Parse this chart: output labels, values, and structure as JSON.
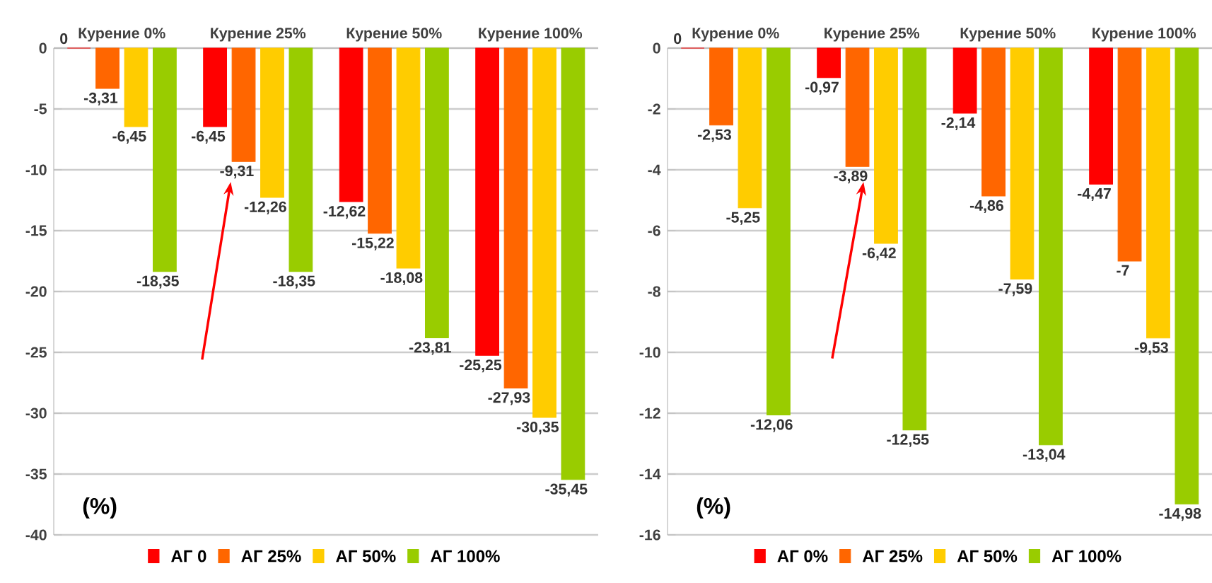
{
  "chart_data": [
    {
      "type": "bar",
      "ylabel": "(%)",
      "categories": [
        "Курение 0%",
        "Курение 25%",
        "Курение 50%",
        "Курение 100%"
      ],
      "series": [
        {
          "name": "АГ 0",
          "color": "#ff0000",
          "values": [
            0,
            -6.45,
            -12.62,
            -25.25
          ],
          "value_labels": [
            "0",
            "-6,45",
            "-12,62",
            "-25,25"
          ]
        },
        {
          "name": "АГ 25%",
          "color": "#ff6600",
          "values": [
            -3.31,
            -9.31,
            -15.22,
            -27.93
          ],
          "value_labels": [
            "-3,31",
            "-9,31",
            "-15,22",
            "-27,93"
          ]
        },
        {
          "name": "АГ 50%",
          "color": "#ffcc00",
          "values": [
            -6.45,
            -12.26,
            -18.08,
            -30.35
          ],
          "value_labels": [
            "-6,45",
            "-12,26",
            "-18,08",
            "-30,35"
          ]
        },
        {
          "name": "АГ 100%",
          "color": "#99cc00",
          "values": [
            -18.35,
            -18.35,
            -23.81,
            -35.45
          ],
          "value_labels": [
            "-18,35",
            "-18,35",
            "-23,81",
            "-35,45"
          ]
        }
      ],
      "ylim": [
        -40,
        0
      ],
      "yticks": [
        -40,
        -35,
        -30,
        -25,
        -20,
        -15,
        -10,
        -5,
        0
      ],
      "grid": "y",
      "legend": "bottom"
    },
    {
      "type": "bar",
      "ylabel": "(%)",
      "categories": [
        "Курение 0%",
        "Курение 25%",
        "Курение 50%",
        "Курение 100%"
      ],
      "series": [
        {
          "name": "АГ 0%",
          "color": "#ff0000",
          "values": [
            0,
            -0.97,
            -2.14,
            -4.47
          ],
          "value_labels": [
            "0",
            "-0,97",
            "-2,14",
            "-4,47"
          ]
        },
        {
          "name": "АГ 25%",
          "color": "#ff6600",
          "values": [
            -2.53,
            -3.89,
            -4.86,
            -7
          ],
          "value_labels": [
            "-2,53",
            "-3,89",
            "-4,86",
            "-7"
          ]
        },
        {
          "name": "АГ 50%",
          "color": "#ffcc00",
          "values": [
            -5.25,
            -6.42,
            -7.59,
            -9.53
          ],
          "value_labels": [
            "-5,25",
            "-6,42",
            "-7,59",
            "-9,53"
          ]
        },
        {
          "name": "АГ 100%",
          "color": "#99cc00",
          "values": [
            -12.06,
            -12.55,
            -13.04,
            -14.98
          ],
          "value_labels": [
            "-12,06",
            "-12,55",
            "-13,04",
            "-14,98"
          ]
        }
      ],
      "ylim": [
        -16,
        0
      ],
      "yticks": [
        -16,
        -14,
        -12,
        -10,
        -8,
        -6,
        -4,
        -2,
        0
      ],
      "grid": "y",
      "legend": "bottom"
    }
  ]
}
